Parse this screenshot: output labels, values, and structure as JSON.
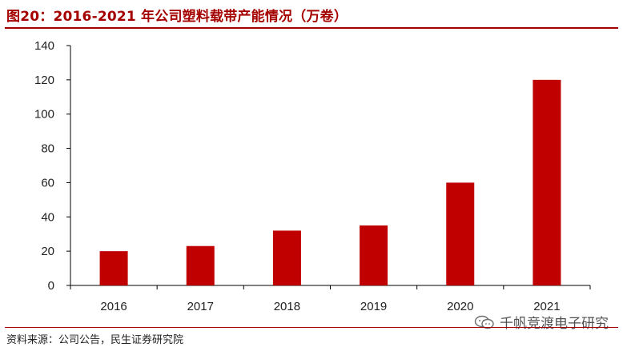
{
  "title": "图20：2016-2021 年公司塑料载带产能情况（万卷）",
  "source": "资料来源：公司公告，民生证券研究院",
  "watermark": {
    "text": "千帆竞渡电子研究",
    "icon": "wechat-icon"
  },
  "colors": {
    "bar": "#c00000",
    "title": "#a50000",
    "axis": "#000000"
  },
  "chart_data": {
    "type": "bar",
    "categories": [
      "2016",
      "2017",
      "2018",
      "2019",
      "2020",
      "2021"
    ],
    "values": [
      20,
      23,
      32,
      35,
      60,
      120
    ],
    "title": "",
    "xlabel": "",
    "ylabel": "",
    "ylim": [
      0,
      140
    ],
    "yticks": [
      0,
      20,
      40,
      60,
      80,
      100,
      120,
      140
    ],
    "grid": false,
    "legend": "none"
  }
}
